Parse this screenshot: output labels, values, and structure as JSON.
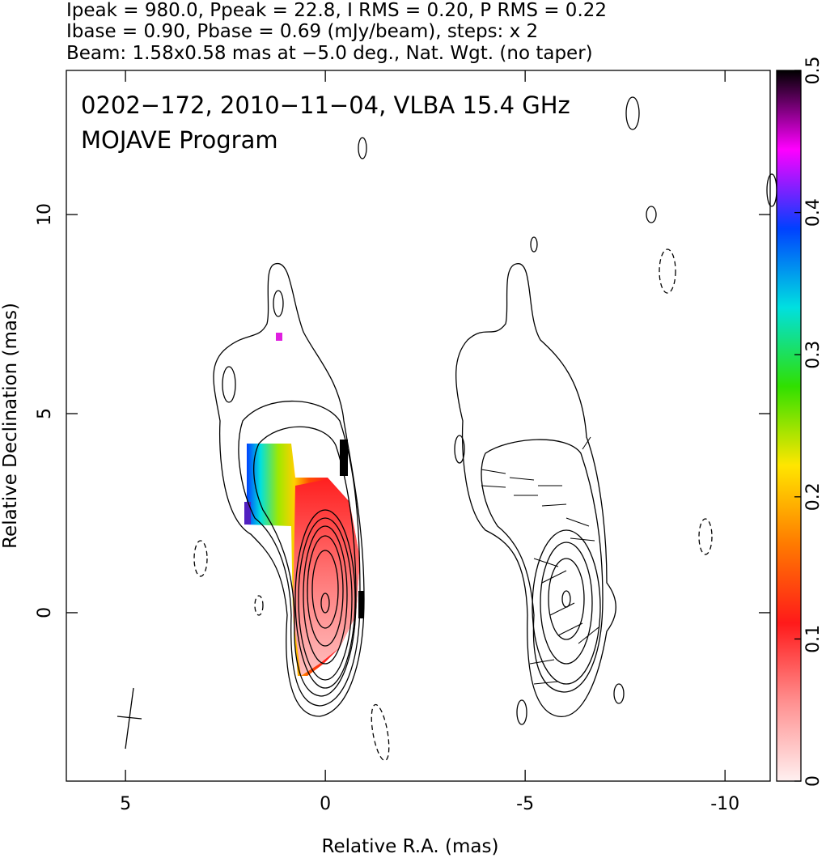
{
  "chart_data": {
    "type": "contour",
    "header": [
      "Ipeak = 980.0, Ppeak = 22.8, I RMS = 0.20, P RMS = 0.22",
      "Ibase = 0.90, Pbase = 0.69 (mJy/beam), steps: x 2",
      "Beam: 1.58x0.58 mas at −5.0 deg., Nat. Wgt. (no taper)"
    ],
    "annotations": [
      "0202−172, 2010−11−04, VLBA 15.4 GHz",
      "MOJAVE Program"
    ],
    "xlabel": "Relative R.A. (mas)",
    "ylabel": "Relative Declination (mas)",
    "xlim": [
      6.48,
      -11.13
    ],
    "xticks": [
      5,
      0,
      -5,
      -10
    ],
    "ylim": [
      -4.23,
      13.62
    ],
    "yticks": [
      0,
      5,
      10
    ],
    "colorbar": {
      "lim": [
        0,
        0.5
      ],
      "ticks": [
        0,
        0.1,
        0.2,
        0.3,
        0.4,
        0.5
      ],
      "colors": [
        "#fff0f0",
        "#ff9090",
        "#ff1a1a",
        "#ff7a00",
        "#ffe600",
        "#30e000",
        "#00e0e0",
        "#0040ff",
        "#ff00ff",
        "#000000"
      ]
    }
  }
}
